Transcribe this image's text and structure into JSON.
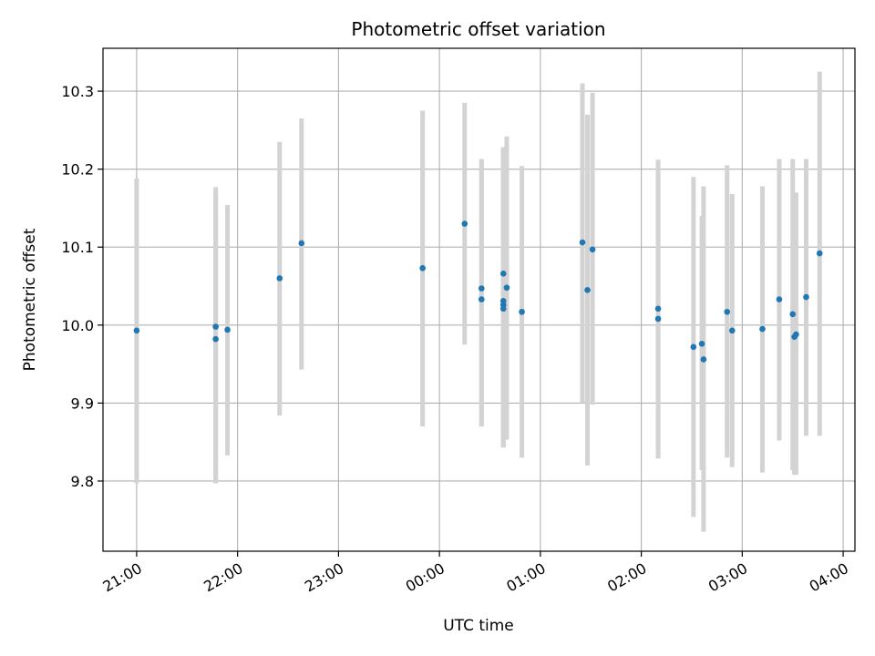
{
  "chart_data": {
    "type": "scatter",
    "title": "Photometric offset variation",
    "xlabel": "UTC time",
    "ylabel": "Photometric offset",
    "x_axis": {
      "type": "time",
      "start": "20:40",
      "end": "04:07",
      "ticks": [
        "21:00",
        "22:00",
        "23:00",
        "00:00",
        "01:00",
        "02:00",
        "03:00",
        "04:00"
      ]
    },
    "y_axis": {
      "min": 9.71,
      "max": 10.355,
      "ticks": [
        "9.8",
        "9.9",
        "10.0",
        "10.1",
        "10.2",
        "10.3"
      ]
    },
    "grid": true,
    "colors": {
      "point": "#1f77b4",
      "errorbar": "#d3d3d3",
      "grid": "#b0b0b0"
    },
    "points": [
      {
        "time": "21:00",
        "y": 9.993,
        "err_low": 9.797,
        "err_high": 10.188
      },
      {
        "time": "21:47",
        "y": 9.998,
        "err_low": 9.797,
        "err_high": 10.177
      },
      {
        "time": "21:47",
        "y": 9.982,
        "err_low": 9.797,
        "err_high": 10.17
      },
      {
        "time": "21:54",
        "y": 9.994,
        "err_low": 9.833,
        "err_high": 10.154
      },
      {
        "time": "22:25",
        "y": 10.06,
        "err_low": 9.884,
        "err_high": 10.235
      },
      {
        "time": "22:38",
        "y": 10.105,
        "err_low": 9.943,
        "err_high": 10.265
      },
      {
        "time": "23:50",
        "y": 10.073,
        "err_low": 9.87,
        "err_high": 10.275
      },
      {
        "time": "00:15",
        "y": 10.13,
        "err_low": 9.975,
        "err_high": 10.285
      },
      {
        "time": "00:25",
        "y": 10.047,
        "err_low": 9.87,
        "err_high": 10.213
      },
      {
        "time": "00:25",
        "y": 10.033,
        "err_low": 9.87,
        "err_high": 10.213
      },
      {
        "time": "00:38",
        "y": 10.066,
        "err_low": 9.843,
        "err_high": 10.228
      },
      {
        "time": "00:38",
        "y": 10.031,
        "err_low": 9.843,
        "err_high": 10.228
      },
      {
        "time": "00:38",
        "y": 10.026,
        "err_low": 9.843,
        "err_high": 10.228
      },
      {
        "time": "00:38",
        "y": 10.021,
        "err_low": 9.85,
        "err_high": 10.228
      },
      {
        "time": "00:40",
        "y": 10.048,
        "err_low": 9.853,
        "err_high": 10.242
      },
      {
        "time": "00:49",
        "y": 10.017,
        "err_low": 9.83,
        "err_high": 10.204
      },
      {
        "time": "01:25",
        "y": 10.106,
        "err_low": 9.9,
        "err_high": 10.31
      },
      {
        "time": "01:28",
        "y": 10.045,
        "err_low": 9.82,
        "err_high": 10.27
      },
      {
        "time": "01:31",
        "y": 10.097,
        "err_low": 9.898,
        "err_high": 10.298
      },
      {
        "time": "02:10",
        "y": 10.021,
        "err_low": 9.829,
        "err_high": 10.212
      },
      {
        "time": "02:10",
        "y": 10.008,
        "err_low": 9.829,
        "err_high": 10.212
      },
      {
        "time": "02:31",
        "y": 9.972,
        "err_low": 9.754,
        "err_high": 10.19
      },
      {
        "time": "02:36",
        "y": 9.976,
        "err_low": 9.814,
        "err_high": 10.14
      },
      {
        "time": "02:37",
        "y": 9.956,
        "err_low": 9.735,
        "err_high": 10.178
      },
      {
        "time": "02:51",
        "y": 10.017,
        "err_low": 9.83,
        "err_high": 10.205
      },
      {
        "time": "02:54",
        "y": 9.993,
        "err_low": 9.818,
        "err_high": 10.168
      },
      {
        "time": "03:12",
        "y": 9.995,
        "err_low": 9.811,
        "err_high": 10.178
      },
      {
        "time": "03:22",
        "y": 10.033,
        "err_low": 9.852,
        "err_high": 10.213
      },
      {
        "time": "03:30",
        "y": 10.014,
        "err_low": 9.814,
        "err_high": 10.213
      },
      {
        "time": "03:31",
        "y": 9.985,
        "err_low": 9.808,
        "err_high": 10.17
      },
      {
        "time": "03:32",
        "y": 9.988,
        "err_low": 9.808,
        "err_high": 10.17
      },
      {
        "time": "03:38",
        "y": 10.036,
        "err_low": 9.858,
        "err_high": 10.213
      },
      {
        "time": "03:46",
        "y": 10.092,
        "err_low": 9.858,
        "err_high": 10.325
      }
    ]
  }
}
